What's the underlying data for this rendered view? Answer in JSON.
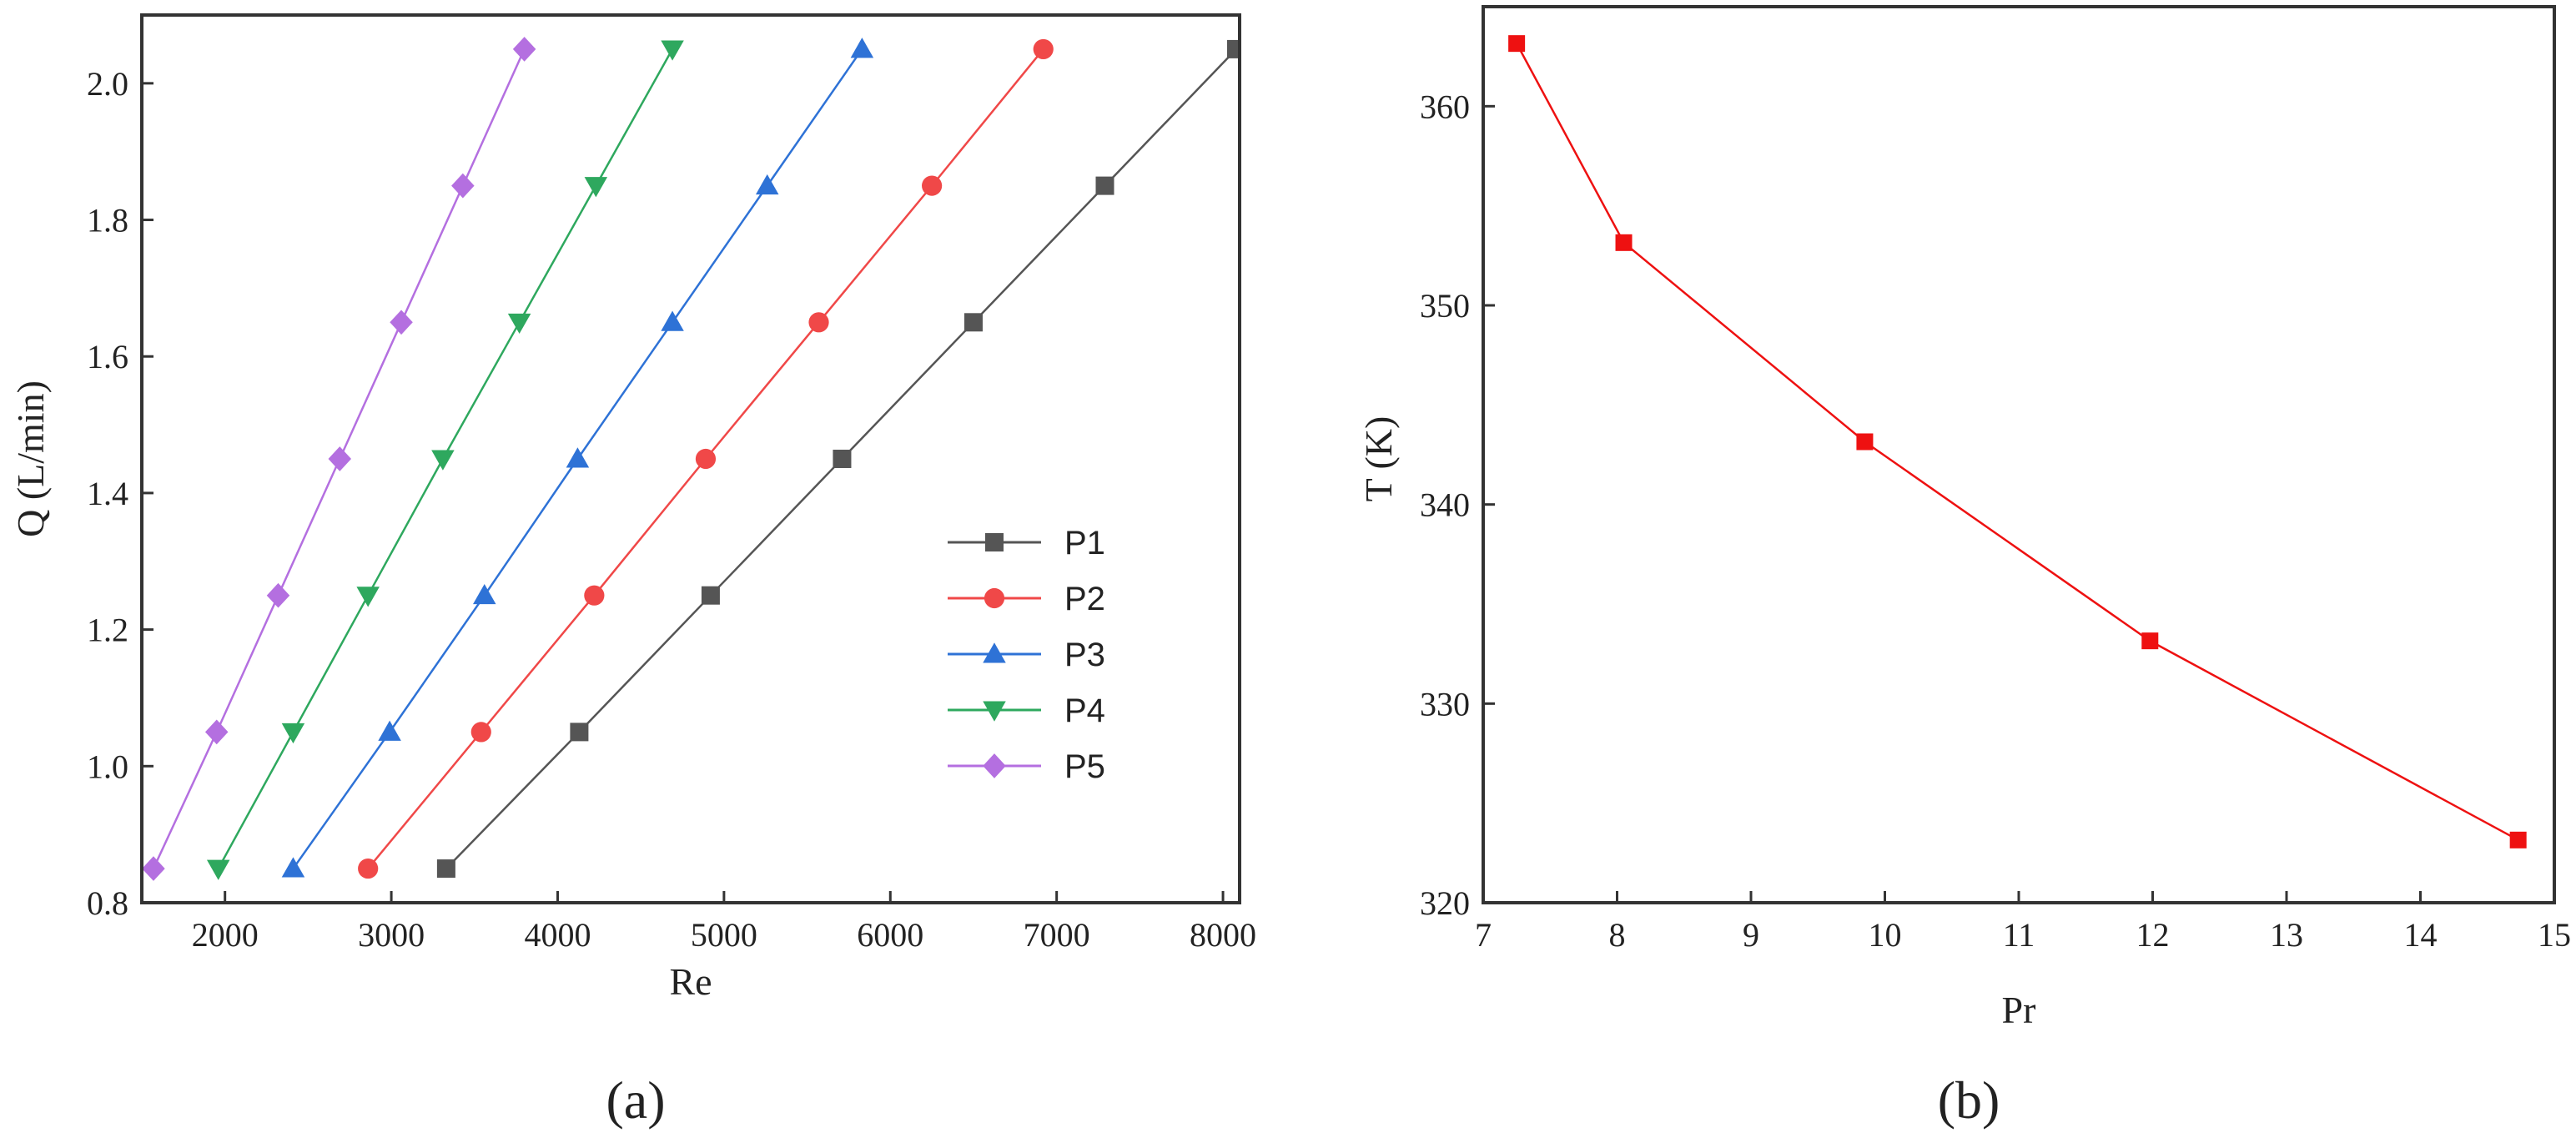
{
  "chart_data": [
    {
      "type": "line",
      "caption": "(a)",
      "xlabel": "Re",
      "ylabel": "Q (L/min)",
      "xlim": [
        1500,
        8100
      ],
      "ylim": [
        0.8,
        2.1
      ],
      "xticks": [
        2000,
        3000,
        4000,
        5000,
        6000,
        7000,
        8000
      ],
      "yticks": [
        0.8,
        1.0,
        1.2,
        1.4,
        1.6,
        1.8,
        2.0
      ],
      "ytick_labels": [
        "0.8",
        "1.0",
        "1.2",
        "1.4",
        "1.6",
        "1.8",
        "2.0"
      ],
      "grid": false,
      "legend_position": "bottom-right",
      "series": [
        {
          "name": "P1",
          "color": "#555555",
          "marker": "square",
          "x": [
            3330,
            4130,
            4920,
            5710,
            6500,
            7290,
            8080
          ],
          "y": [
            0.85,
            1.05,
            1.25,
            1.45,
            1.65,
            1.85,
            2.05
          ]
        },
        {
          "name": "P2",
          "color": "#f04848",
          "marker": "circle",
          "x": [
            2860,
            3540,
            4220,
            4890,
            5570,
            6250,
            6920
          ],
          "y": [
            0.85,
            1.05,
            1.25,
            1.45,
            1.65,
            1.85,
            2.05
          ]
        },
        {
          "name": "P3",
          "color": "#2e72d6",
          "marker": "triangle-up",
          "x": [
            2410,
            2990,
            3560,
            4120,
            4690,
            5260,
            5830
          ],
          "y": [
            0.85,
            1.05,
            1.25,
            1.45,
            1.65,
            1.85,
            2.05
          ]
        },
        {
          "name": "P4",
          "color": "#2ea85e",
          "marker": "triangle-down",
          "x": [
            1960,
            2410,
            2860,
            3310,
            3770,
            4230,
            4690
          ],
          "y": [
            0.85,
            1.05,
            1.25,
            1.45,
            1.65,
            1.85,
            2.05
          ]
        },
        {
          "name": "P5",
          "color": "#b46fe0",
          "marker": "diamond",
          "x": [
            1570,
            1950,
            2320,
            2690,
            3060,
            3430,
            3800
          ],
          "y": [
            0.85,
            1.05,
            1.25,
            1.45,
            1.65,
            1.85,
            2.05
          ]
        }
      ]
    },
    {
      "type": "line",
      "caption": "(b)",
      "xlabel": "Pr",
      "ylabel": "T (K)",
      "xlim": [
        7,
        15
      ],
      "ylim": [
        320,
        365
      ],
      "xticks": [
        7,
        8,
        9,
        10,
        11,
        12,
        13,
        14,
        15
      ],
      "yticks": [
        320,
        330,
        340,
        350,
        360
      ],
      "grid": false,
      "series": [
        {
          "name": "T",
          "color": "#ee1111",
          "marker": "square",
          "x": [
            7.25,
            8.05,
            9.85,
            11.98,
            14.73
          ],
          "y": [
            363.15,
            353.15,
            343.15,
            333.15,
            323.15
          ]
        }
      ]
    }
  ]
}
